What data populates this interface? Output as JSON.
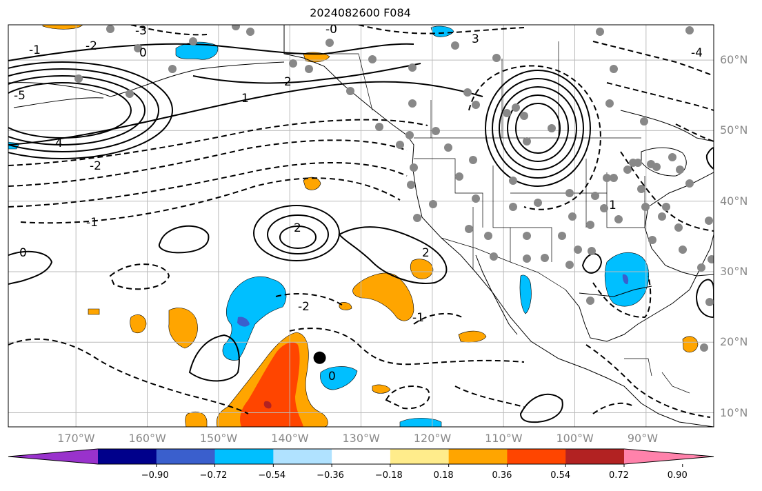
{
  "title": "2024082600 F084",
  "lat_labels": [
    {
      "value": 60,
      "text": "60°N"
    },
    {
      "value": 50,
      "text": "50°N"
    },
    {
      "value": 40,
      "text": "40°N"
    },
    {
      "value": 30,
      "text": "30°N"
    },
    {
      "value": 20,
      "text": "20°N"
    },
    {
      "value": 10,
      "text": "10°N"
    }
  ],
  "lon_labels": [
    {
      "value": -170,
      "text": "170°W"
    },
    {
      "value": -160,
      "text": "160°W"
    },
    {
      "value": -150,
      "text": "150°W"
    },
    {
      "value": -140,
      "text": "140°W"
    },
    {
      "value": -130,
      "text": "130°W"
    },
    {
      "value": -120,
      "text": "120°W"
    },
    {
      "value": -110,
      "text": "110°W"
    },
    {
      "value": -100,
      "text": "100°W"
    },
    {
      "value": -90,
      "text": "90°W"
    }
  ],
  "map_extent": {
    "lon_min": -179.5,
    "lon_max": -80.5,
    "lat_min": 8.0,
    "lat_max": 65.0
  },
  "colorbar": {
    "colors": [
      "#9932cc",
      "#00008b",
      "#3a5fcd",
      "#00bfff",
      "#b0e2ff",
      "#ffffff",
      "#ffec8b",
      "#ffa500",
      "#ff4500",
      "#b22222",
      "#ff82ab"
    ],
    "ticks": [
      "−0.90",
      "−0.72",
      "−0.54",
      "−0.36",
      "−0.18",
      "0.18",
      "0.36",
      "0.54",
      "0.72",
      "0.90"
    ]
  },
  "marker": {
    "lon": -135.8,
    "lat": 17.8,
    "color": "#000000"
  },
  "contour_labels": [
    "-0",
    "-3",
    "-2",
    "0",
    "2",
    "3",
    "-4",
    "-1",
    "1",
    "-5",
    "4",
    "-2",
    "-1",
    "0",
    "2",
    "-2",
    "-1",
    "0",
    "2",
    "1"
  ]
}
